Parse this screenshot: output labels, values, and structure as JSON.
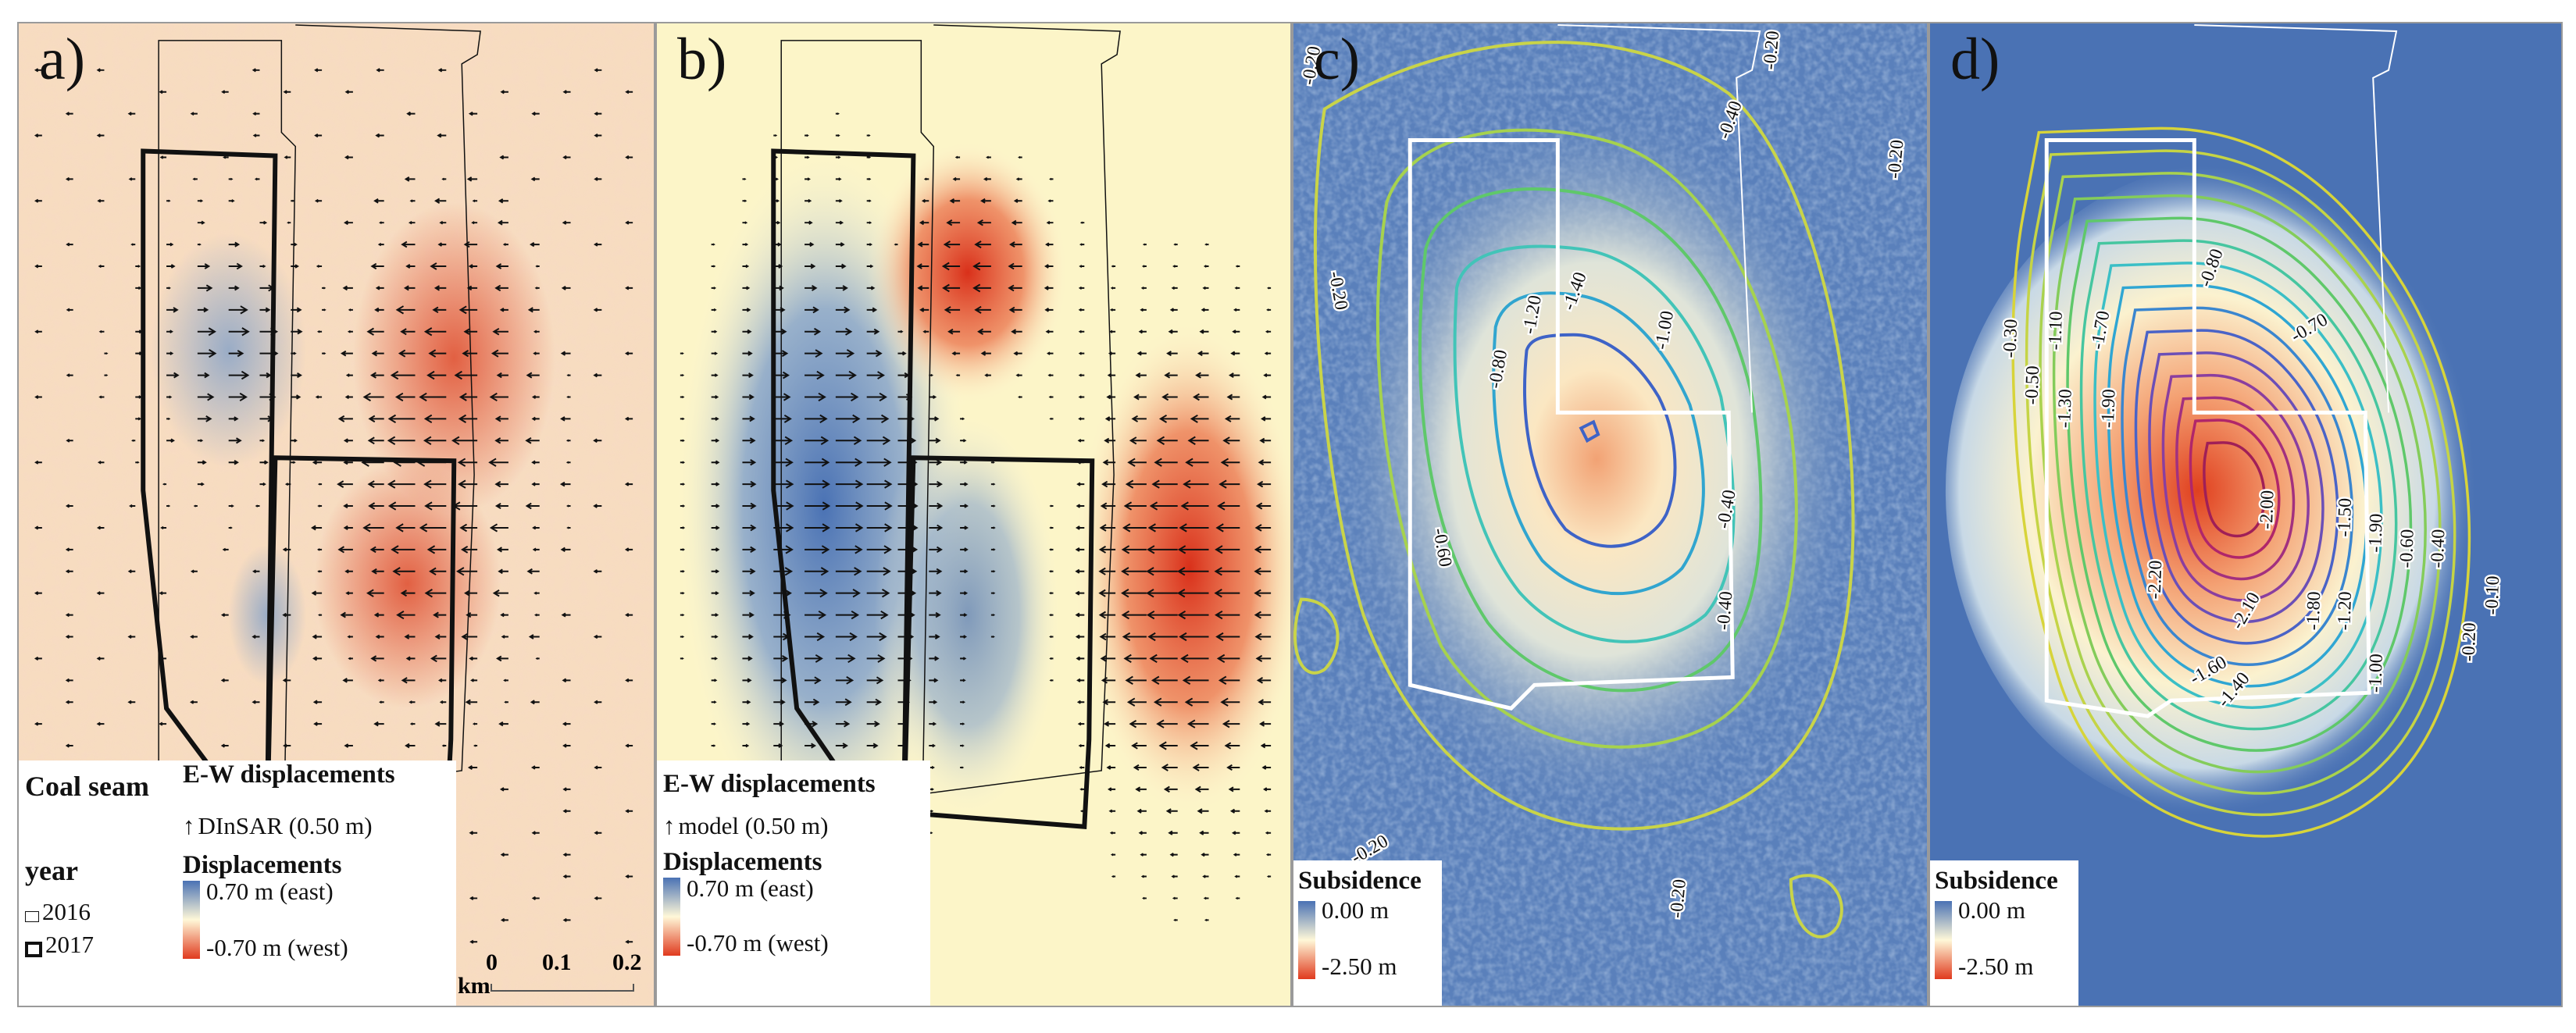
{
  "panels": {
    "a": {
      "label": "a)"
    },
    "b": {
      "label": "b)"
    },
    "c": {
      "label": "c)"
    },
    "d": {
      "label": "d)"
    }
  },
  "legend_a": {
    "coal_seam_title": "Coal seam",
    "year_label": "year",
    "year_2016": "2016",
    "year_2017": "2017",
    "ew_title": "E-W displacements",
    "arrow_label": "DInSAR (0.50 m)",
    "disp_title": "Displacements",
    "east_label": "0.70 m (east)",
    "west_label": "-0.70 m  (west)"
  },
  "scalebar": {
    "unit": "km",
    "ticks": [
      "0",
      "0.1",
      "0.2"
    ]
  },
  "legend_b": {
    "ew_title": "E-W displacements",
    "arrow_label": "model (0.50 m)",
    "disp_title": "Displacements",
    "east_label": "0.70 m (east)",
    "west_label": "-0.70 m (west)"
  },
  "legend_c": {
    "title": "Subsidence",
    "max_label": "0.00 m",
    "min_label": "-2.50 m"
  },
  "legend_d": {
    "title": "Subsidence",
    "max_label": "0.00 m",
    "min_label": "-2.50 m"
  },
  "contours_c": [
    "-0.20",
    "-0.40",
    "-0.20",
    "-0.20",
    "-0.80",
    "-1.20",
    "-1.40",
    "-1.00",
    "-0.40",
    "-0.60",
    "-0.20",
    "-0.20",
    "-0.40",
    "-0.20"
  ],
  "contours_d": [
    "-0.30",
    "-0.50",
    "-1.10",
    "-1.30",
    "-1.70",
    "-1.90",
    "-0.80",
    "-0.70",
    "-2.20",
    "-2.00",
    "-1.50",
    "-1.90",
    "-0.60",
    "-0.40",
    "-0.10",
    "-1.80",
    "-1.20",
    "-1.00",
    "-0.20",
    "-1.60",
    "-2.10",
    "-1.40"
  ],
  "colors": {
    "east": "#4a72b4",
    "neutral": "#fff8d8",
    "west": "#e03a1e",
    "subsidence_bg": "#4a72b4"
  }
}
